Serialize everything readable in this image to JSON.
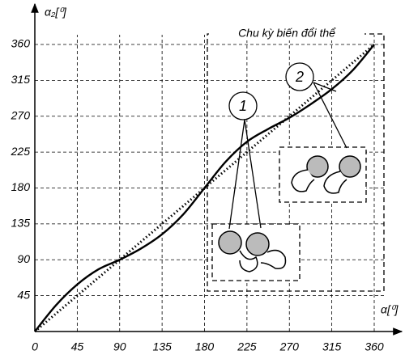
{
  "chart_data": {
    "type": "line",
    "x_label": "α[⁰]",
    "y_label": "α₂[⁰]",
    "annotation": "Chu kỳ biến đổi thể",
    "x": [
      0,
      22.5,
      45,
      67.5,
      90,
      112.5,
      135,
      157.5,
      180,
      202.5,
      225,
      247.5,
      270,
      292.5,
      315,
      337.5,
      360
    ],
    "series": [
      {
        "name": "1",
        "color": "#000000",
        "style": "solid",
        "values": [
          0,
          33,
          59,
          78,
          90,
          104,
          122,
          147,
          180,
          213,
          238,
          254,
          268,
          285,
          304,
          328,
          360
        ]
      },
      {
        "name": "2",
        "color": "#000000",
        "style": "dotted",
        "values": [
          0,
          22.5,
          45,
          67.5,
          90,
          112.5,
          135,
          157.5,
          180,
          202.5,
          225,
          247.5,
          270,
          292.5,
          315,
          337.5,
          360
        ]
      }
    ],
    "xlim": [
      0,
      360
    ],
    "ylim": [
      0,
      360
    ],
    "xticks": [
      0,
      45,
      90,
      135,
      180,
      225,
      270,
      315,
      360
    ],
    "yticks": [
      45,
      90,
      135,
      180,
      225,
      270,
      315,
      360
    ],
    "grid": true
  }
}
